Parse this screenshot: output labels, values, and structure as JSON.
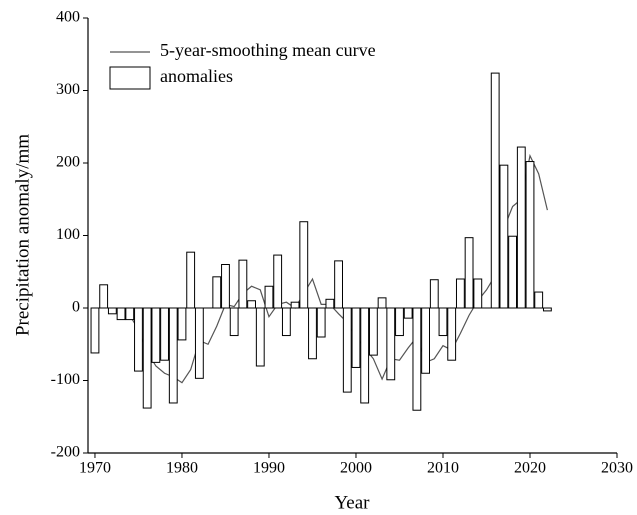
{
  "chart_data": {
    "type": "combo",
    "xlabel": "Year",
    "ylabel": "Precipitation anomaly/mm",
    "xlim": [
      1969.2,
      2030
    ],
    "xticks": [
      1970,
      1980,
      1990,
      2000,
      2010,
      2020,
      2030
    ],
    "ylim": [
      -200,
      400
    ],
    "yticks": [
      -200,
      -100,
      0,
      100,
      200,
      300,
      400
    ],
    "legend": "upper-left",
    "series": [
      {
        "name": "5-year-smoothing mean curve",
        "type": "line",
        "color": "#555555",
        "x": [
          1973,
          1974,
          1975,
          1976,
          1977,
          1978,
          1979,
          1980,
          1981,
          1982,
          1983,
          1984,
          1985,
          1986,
          1987,
          1988,
          1989,
          1990,
          1991,
          1992,
          1993,
          1994,
          1995,
          1996,
          1997,
          1998,
          1999,
          2000,
          2001,
          2002,
          2003,
          2004,
          2005,
          2006,
          2007,
          2008,
          2009,
          2010,
          2011,
          2012,
          2013,
          2014,
          2015,
          2016,
          2017,
          2018,
          2019,
          2020,
          2021,
          2022
        ],
        "values": [
          -12,
          -10,
          -30,
          -60,
          -80,
          -90,
          -95,
          -103,
          -85,
          -45,
          -50,
          -25,
          5,
          2,
          20,
          30,
          25,
          -12,
          5,
          8,
          0,
          20,
          40,
          5,
          5,
          -8,
          -20,
          -40,
          -55,
          -70,
          -98,
          -70,
          -72,
          -55,
          -40,
          -75,
          -70,
          -52,
          -58,
          -35,
          -10,
          10,
          25,
          45,
          110,
          140,
          150,
          210,
          185,
          135
        ]
      },
      {
        "name": "anomalies",
        "type": "bar",
        "color": "#000000",
        "x": [
          1970,
          1971,
          1972,
          1973,
          1974,
          1975,
          1976,
          1977,
          1978,
          1979,
          1980,
          1981,
          1982,
          1983,
          1984,
          1985,
          1986,
          1987,
          1988,
          1989,
          1990,
          1991,
          1992,
          1993,
          1994,
          1995,
          1996,
          1997,
          1998,
          1999,
          2000,
          2001,
          2002,
          2003,
          2004,
          2005,
          2006,
          2007,
          2008,
          2009,
          2010,
          2011,
          2012,
          2013,
          2014,
          2015,
          2016,
          2017,
          2018,
          2019,
          2020,
          2021,
          2022
        ],
        "values": [
          -62,
          32,
          -8,
          -16,
          -16,
          -87,
          -138,
          -75,
          -72,
          -131,
          -44,
          77,
          -97,
          0,
          43,
          60,
          -38,
          66,
          10,
          -80,
          30,
          73,
          -38,
          8,
          119,
          -70,
          -40,
          12,
          65,
          -116,
          -82,
          -131,
          -65,
          14,
          -99,
          -38,
          -14,
          -141,
          -90,
          39,
          -38,
          -72,
          40,
          97,
          40,
          0,
          324,
          197,
          99,
          222,
          202,
          22,
          -4
        ]
      }
    ]
  }
}
